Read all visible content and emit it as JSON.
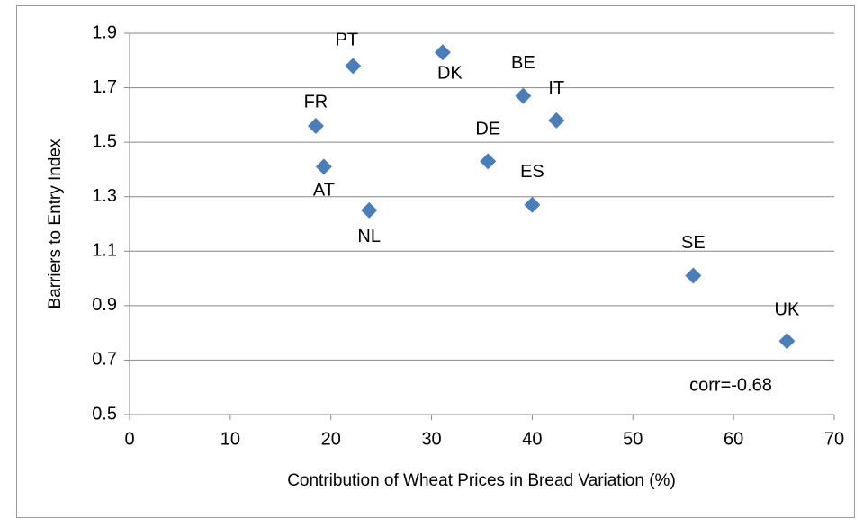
{
  "chart_data": {
    "type": "scatter",
    "x_label": "Contribution of Wheat Prices in Bread Variation  (%)",
    "y_label": "Barriers to Entry Index",
    "annotation": "corr=-0.68",
    "labels": [
      "PT",
      "DK",
      "BE",
      "IT",
      "FR",
      "AT",
      "DE",
      "ES",
      "NL",
      "SE",
      "UK"
    ],
    "x": [
      22.2,
      31.1,
      39.1,
      42.4,
      18.5,
      19.3,
      35.6,
      40.0,
      23.8,
      56.0,
      65.3
    ],
    "values": [
      1.78,
      1.83,
      1.67,
      1.58,
      1.56,
      1.41,
      1.43,
      1.27,
      1.25,
      1.01,
      0.77
    ],
    "color": "#4a7ebb",
    "xlim": [
      0,
      70
    ],
    "xticks": [
      0,
      10,
      20,
      30,
      40,
      50,
      60,
      70
    ],
    "ylim": [
      0.5,
      1.9
    ],
    "yticks": [
      0.5,
      0.7,
      0.9,
      1.1,
      1.3,
      1.5,
      1.7,
      1.9
    ],
    "grid": true
  }
}
